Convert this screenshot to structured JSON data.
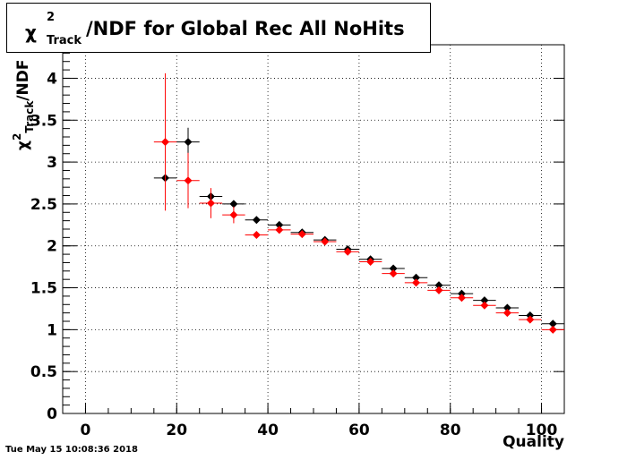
{
  "title": {
    "chi": "χ",
    "sup": "2",
    "sub": "Track",
    "rest": "/NDF for Global Rec All NoHits"
  },
  "timestamp": "Tue May 15 10:08:36 2018",
  "chart_data": {
    "type": "scatter",
    "title": "χ²_Track/NDF for Global Rec All NoHits",
    "xlabel": "Quality",
    "ylabel": "χ²_Track/NDF",
    "xlim": [
      -5,
      105
    ],
    "ylim": [
      0,
      4.4
    ],
    "x_ticks": [
      "0",
      "20",
      "40",
      "60",
      "80",
      "100"
    ],
    "y_ticks": [
      "0",
      "0.5",
      "1",
      "1.5",
      "2",
      "2.5",
      "3",
      "3.5",
      "4"
    ],
    "grid": true,
    "bin_width": 5,
    "series": [
      {
        "color": "#000000",
        "x": [
          17.5,
          22.5,
          27.5,
          32.5,
          37.5,
          42.5,
          47.5,
          52.5,
          57.5,
          62.5,
          67.5,
          72.5,
          77.5,
          82.5,
          87.5,
          92.5,
          97.5,
          102.5
        ],
        "y": [
          2.81,
          3.24,
          2.59,
          2.5,
          2.31,
          2.25,
          2.16,
          2.07,
          1.96,
          1.84,
          1.73,
          1.62,
          1.53,
          1.43,
          1.35,
          1.26,
          1.17,
          1.07
        ],
        "yerr": [
          0.0,
          0.17,
          0.05,
          0.03,
          0.02,
          0.02,
          0.01,
          0.01,
          0.01,
          0.01,
          0.01,
          0.01,
          0.01,
          0.01,
          0.01,
          0.01,
          0.01,
          0.01
        ]
      },
      {
        "color": "#ff0000",
        "x": [
          17.5,
          22.5,
          27.5,
          32.5,
          37.5,
          42.5,
          47.5,
          52.5,
          57.5,
          62.5,
          67.5,
          72.5,
          77.5,
          82.5,
          87.5,
          92.5,
          97.5,
          102.5
        ],
        "y": [
          3.24,
          2.78,
          2.51,
          2.37,
          2.13,
          2.19,
          2.14,
          2.05,
          1.93,
          1.81,
          1.67,
          1.56,
          1.47,
          1.38,
          1.29,
          1.2,
          1.12,
          1.0
        ],
        "yerr": [
          0.82,
          0.33,
          0.18,
          0.1,
          0.04,
          0.03,
          0.02,
          0.02,
          0.02,
          0.02,
          0.02,
          0.02,
          0.02,
          0.02,
          0.02,
          0.02,
          0.02,
          0.02
        ]
      }
    ]
  }
}
